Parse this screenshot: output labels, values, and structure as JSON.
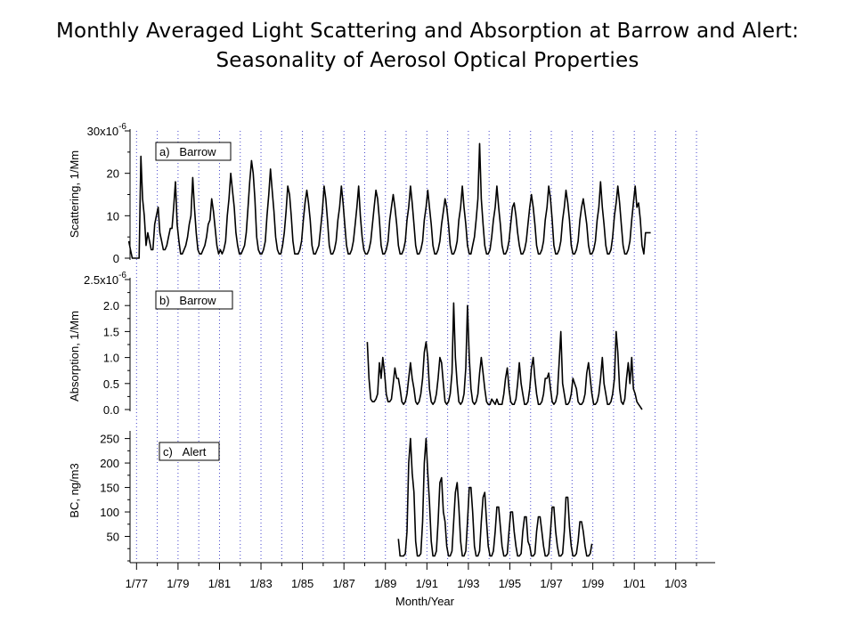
{
  "title": {
    "line1": "Monthly Averaged Light Scattering and Absorption at Barrow and Alert:",
    "line2": "Seasonality of Aerosol Optical Properties"
  },
  "xaxis": {
    "label": "Month/Year",
    "ticks": [
      "1/77",
      "1/79",
      "1/81",
      "1/83",
      "1/85",
      "1/87",
      "1/89",
      "1/91",
      "1/93",
      "1/95",
      "1/97",
      "1/99",
      "1/01",
      "1/03"
    ],
    "range": [
      1976.6,
      2004.9
    ]
  },
  "colors": {
    "line": "#000000",
    "grid": "#4444cc",
    "axis": "#000000"
  },
  "chart_data": [
    {
      "type": "line",
      "panel_label": "a)   Barrow",
      "ylabel": "Scattering, 1/Mm",
      "y_tick_labels": [
        "0",
        "10",
        "20",
        "30x10"
      ],
      "y_tick_values": [
        0,
        10,
        20,
        30
      ],
      "y_exponent": "-6",
      "ylim": [
        0,
        30
      ],
      "grid": "vertical dotted lines each January",
      "x_start": 1976.625,
      "monthly_values": [
        4,
        2,
        0,
        0,
        0,
        0,
        0,
        24,
        14,
        10,
        3,
        6,
        4,
        2,
        2,
        8,
        10,
        12,
        6,
        4,
        2,
        2,
        3,
        5,
        7,
        7,
        12,
        18,
        8,
        4,
        1,
        1,
        2,
        3,
        5,
        8,
        10,
        19,
        12,
        6,
        2,
        1,
        1,
        2,
        3,
        5,
        8,
        9,
        14,
        11,
        7,
        3,
        1,
        2,
        1,
        2,
        4,
        10,
        14,
        20,
        16,
        12,
        6,
        3,
        1,
        1,
        2,
        3,
        6,
        12,
        18,
        23,
        20,
        14,
        5,
        2,
        1,
        1,
        2,
        4,
        10,
        15,
        21,
        16,
        11,
        5,
        2,
        1,
        1,
        3,
        6,
        11,
        17,
        15,
        10,
        4,
        1,
        1,
        1,
        2,
        4,
        9,
        13,
        16,
        13,
        9,
        3,
        1,
        1,
        2,
        3,
        7,
        11,
        17,
        14,
        9,
        3,
        1,
        1,
        2,
        4,
        9,
        12,
        17,
        13,
        8,
        3,
        1,
        1,
        2,
        4,
        8,
        12,
        17,
        10,
        5,
        2,
        1,
        1,
        2,
        4,
        8,
        12,
        16,
        14,
        9,
        3,
        1,
        1,
        2,
        4,
        9,
        12,
        15,
        12,
        8,
        3,
        1,
        1,
        2,
        4,
        9,
        12,
        17,
        13,
        8,
        3,
        1,
        1,
        2,
        4,
        9,
        12,
        16,
        12,
        8,
        3,
        1,
        1,
        2,
        4,
        8,
        11,
        14,
        12,
        8,
        3,
        1,
        1,
        2,
        4,
        9,
        12,
        17,
        12,
        8,
        3,
        1,
        1,
        3,
        5,
        9,
        14,
        27,
        14,
        8,
        3,
        1,
        1,
        2,
        5,
        9,
        12,
        17,
        12,
        8,
        3,
        1,
        1,
        2,
        4,
        8,
        12,
        13,
        10,
        6,
        3,
        1,
        1,
        2,
        4,
        8,
        12,
        15,
        12,
        8,
        3,
        1,
        1,
        2,
        4,
        9,
        12,
        17,
        14,
        9,
        3,
        1,
        1,
        2,
        4,
        9,
        12,
        16,
        13,
        9,
        3,
        1,
        1,
        2,
        4,
        9,
        12,
        14,
        11,
        8,
        3,
        1,
        1,
        2,
        4,
        9,
        12,
        18,
        12,
        8,
        3,
        1,
        1,
        2,
        5,
        10,
        13,
        17,
        13,
        8,
        3,
        1,
        1,
        2,
        4,
        9,
        13,
        17,
        12,
        13,
        9,
        3,
        1,
        6,
        6,
        6,
        6
      ]
    },
    {
      "type": "line",
      "panel_label": "b)   Barrow",
      "ylabel": "Absorption, 1/Mm",
      "y_tick_labels": [
        "0.0",
        "0.5",
        "1.0",
        "1.5",
        "2.0",
        "2.5x10"
      ],
      "y_tick_values": [
        0,
        0.5,
        1.0,
        1.5,
        2.0,
        2.5
      ],
      "y_exponent": "-6",
      "ylim": [
        0,
        2.5
      ],
      "grid": "vertical dotted lines each January",
      "x_start": 1988.125,
      "monthly_values": [
        1.3,
        0.6,
        0.2,
        0.15,
        0.15,
        0.2,
        0.3,
        0.9,
        0.6,
        1.0,
        0.7,
        0.3,
        0.15,
        0.15,
        0.2,
        0.5,
        0.8,
        0.6,
        0.6,
        0.4,
        0.15,
        0.1,
        0.15,
        0.3,
        0.6,
        0.9,
        0.6,
        0.4,
        0.15,
        0.1,
        0.15,
        0.3,
        0.6,
        1.1,
        1.3,
        1.0,
        0.4,
        0.15,
        0.1,
        0.15,
        0.3,
        0.6,
        1.0,
        0.9,
        0.5,
        0.15,
        0.1,
        0.15,
        0.3,
        0.7,
        2.05,
        1.0,
        0.5,
        0.15,
        0.1,
        0.15,
        0.3,
        0.8,
        2.0,
        1.0,
        0.4,
        0.15,
        0.1,
        0.15,
        0.3,
        0.7,
        1.0,
        0.7,
        0.4,
        0.15,
        0.1,
        0.1,
        0.2,
        0.15,
        0.1,
        0.2,
        0.1,
        0.1,
        0.1,
        0.3,
        0.6,
        0.8,
        0.4,
        0.15,
        0.1,
        0.1,
        0.2,
        0.5,
        0.9,
        0.5,
        0.3,
        0.1,
        0.1,
        0.15,
        0.4,
        0.8,
        1.0,
        0.6,
        0.3,
        0.1,
        0.1,
        0.15,
        0.3,
        0.6,
        0.6,
        0.7,
        0.4,
        0.15,
        0.1,
        0.15,
        0.3,
        0.9,
        1.5,
        0.5,
        0.3,
        0.1,
        0.1,
        0.15,
        0.3,
        0.6,
        0.5,
        0.4,
        0.15,
        0.1,
        0.1,
        0.15,
        0.3,
        0.7,
        0.9,
        0.6,
        0.3,
        0.1,
        0.1,
        0.15,
        0.3,
        0.6,
        1.0,
        0.5,
        0.3,
        0.1,
        0.1,
        0.15,
        0.3,
        0.6,
        1.5,
        1.1,
        0.4,
        0.15,
        0.1,
        0.2,
        0.6,
        0.9,
        0.5,
        1.0,
        0.4,
        0.3,
        0.15,
        0.1,
        0.05,
        0.0
      ]
    },
    {
      "type": "line",
      "panel_label": "c)   Alert",
      "ylabel": "BC, ng/m3",
      "y_tick_labels": [
        "50",
        "100",
        "150",
        "200",
        "250"
      ],
      "y_tick_values": [
        50,
        100,
        150,
        200,
        250
      ],
      "ylim": [
        0,
        262
      ],
      "grid": "vertical dotted lines each January",
      "x_start": 1989.625,
      "monthly_values": [
        45,
        10,
        10,
        10,
        15,
        60,
        200,
        250,
        180,
        140,
        40,
        10,
        10,
        15,
        80,
        200,
        250,
        180,
        120,
        40,
        10,
        10,
        20,
        80,
        160,
        170,
        100,
        80,
        30,
        10,
        10,
        20,
        80,
        140,
        160,
        110,
        40,
        10,
        10,
        20,
        80,
        150,
        150,
        100,
        30,
        10,
        10,
        20,
        80,
        130,
        140,
        80,
        30,
        10,
        10,
        20,
        60,
        110,
        110,
        70,
        30,
        10,
        10,
        15,
        60,
        100,
        100,
        60,
        30,
        10,
        10,
        15,
        60,
        90,
        90,
        40,
        30,
        10,
        10,
        15,
        60,
        90,
        90,
        60,
        30,
        10,
        10,
        15,
        60,
        110,
        110,
        60,
        30,
        10,
        10,
        15,
        60,
        130,
        130,
        70,
        30,
        10,
        10,
        15,
        40,
        80,
        80,
        60,
        30,
        10,
        10,
        15,
        35
      ]
    }
  ]
}
